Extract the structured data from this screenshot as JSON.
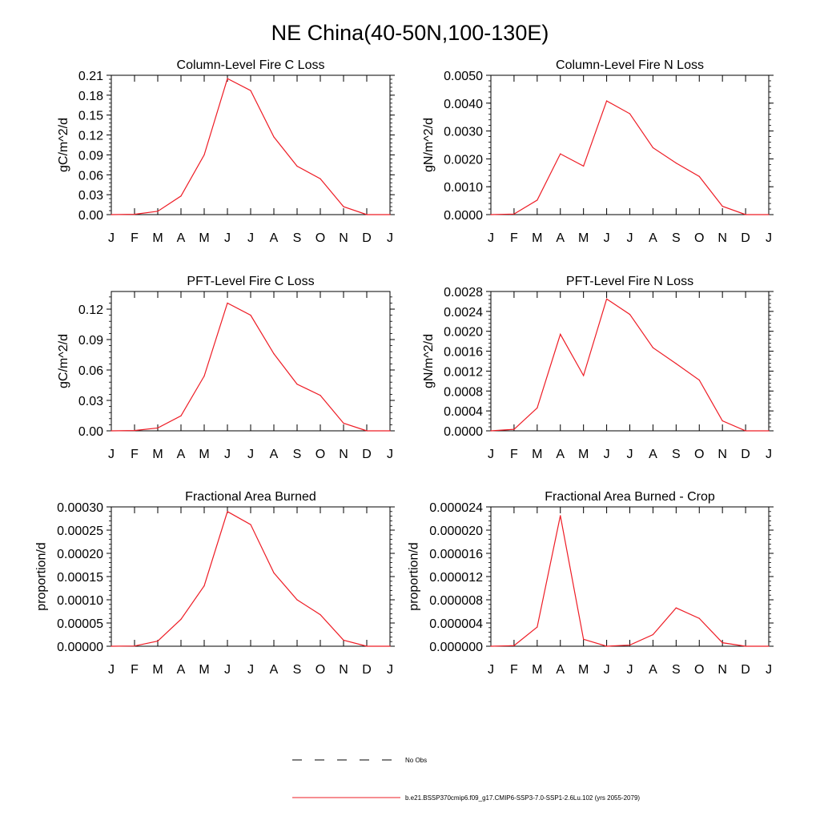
{
  "figure": {
    "title": "NE China(40-50N,100-130E)",
    "line_color": "#ee1c25",
    "legend": [
      {
        "label": "No Obs",
        "style": "dashed",
        "color": "#000000"
      },
      {
        "label": "b.e21.BSSP370cmip6.f09_g17.CMIP6-SSP3-7.0-SSP1-2.6Lu.102 (yrs 2055-2079)",
        "style": "solid",
        "color": "#ee1c25"
      }
    ]
  },
  "chart_data": [
    {
      "type": "line",
      "title": "Column-Level Fire C Loss",
      "ylabel": "gC/m^2/d",
      "categories": [
        "J",
        "F",
        "M",
        "A",
        "M",
        "J",
        "J",
        "A",
        "S",
        "O",
        "N",
        "D",
        "J"
      ],
      "ylim": [
        0,
        0.21
      ],
      "yticks": [
        "0.00",
        "0.03",
        "0.06",
        "0.09",
        "0.12",
        "0.15",
        "0.18",
        "0.21"
      ],
      "series": [
        {
          "values": [
            0,
            0.0005,
            0.005,
            0.028,
            0.09,
            0.205,
            0.187,
            0.117,
            0.073,
            0.054,
            0.012,
            0,
            0
          ]
        }
      ]
    },
    {
      "type": "line",
      "title": "Column-Level Fire N Loss",
      "ylabel": "gN/m^2/d",
      "categories": [
        "J",
        "F",
        "M",
        "A",
        "M",
        "J",
        "J",
        "A",
        "S",
        "O",
        "N",
        "D",
        "J"
      ],
      "ylim": [
        0,
        0.005
      ],
      "yticks": [
        "0.0000",
        "0.0010",
        "0.0020",
        "0.0030",
        "0.0040",
        "0.0050"
      ],
      "series": [
        {
          "values": [
            0,
            2e-05,
            0.00052,
            0.00218,
            0.00174,
            0.00408,
            0.00362,
            0.0024,
            0.00185,
            0.00137,
            0.0003,
            0,
            0
          ]
        }
      ]
    },
    {
      "type": "line",
      "title": "PFT-Level Fire C Loss",
      "ylabel": "gC/m^2/d",
      "categories": [
        "J",
        "F",
        "M",
        "A",
        "M",
        "J",
        "J",
        "A",
        "S",
        "O",
        "N",
        "D",
        "J"
      ],
      "ylim": [
        0,
        0.1374
      ],
      "yticks": [
        "0.00",
        "0.03",
        "0.06",
        "0.09",
        "0.12"
      ],
      "series": [
        {
          "values": [
            0,
            0.0003,
            0.0028,
            0.0148,
            0.054,
            0.126,
            0.114,
            0.076,
            0.046,
            0.035,
            0.0075,
            0,
            0
          ]
        }
      ]
    },
    {
      "type": "line",
      "title": "PFT-Level Fire N Loss",
      "ylabel": "gN/m^2/d",
      "categories": [
        "J",
        "F",
        "M",
        "A",
        "M",
        "J",
        "J",
        "A",
        "S",
        "O",
        "N",
        "D",
        "J"
      ],
      "ylim": [
        0,
        0.0028
      ],
      "yticks": [
        "0.0000",
        "0.0004",
        "0.0008",
        "0.0012",
        "0.0016",
        "0.0020",
        "0.0024",
        "0.0028"
      ],
      "series": [
        {
          "values": [
            0,
            3e-05,
            0.00046,
            0.00194,
            0.00111,
            0.00265,
            0.00234,
            0.00167,
            0.00135,
            0.00102,
            0.0002,
            0,
            0
          ]
        }
      ]
    },
    {
      "type": "line",
      "title": "Fractional Area Burned",
      "ylabel": "proportion/d",
      "categories": [
        "J",
        "F",
        "M",
        "A",
        "M",
        "J",
        "J",
        "A",
        "S",
        "O",
        "N",
        "D",
        "J"
      ],
      "ylim": [
        0,
        0.0003
      ],
      "yticks": [
        "0.00000",
        "0.00005",
        "0.00010",
        "0.00015",
        "0.00020",
        "0.00025",
        "0.00030"
      ],
      "series": [
        {
          "values": [
            0,
            5e-07,
            1.1e-05,
            5.8e-05,
            0.00013,
            0.00029,
            0.000262,
            0.000158,
            0.0001,
            6.8e-05,
            1.3e-05,
            0,
            0
          ]
        }
      ]
    },
    {
      "type": "line",
      "title": "Fractional Area Burned - Crop",
      "ylabel": "proportion/d",
      "categories": [
        "J",
        "F",
        "M",
        "A",
        "M",
        "J",
        "J",
        "A",
        "S",
        "O",
        "N",
        "D",
        "J"
      ],
      "ylim": [
        0,
        2.4e-05
      ],
      "yticks": [
        "0.000000",
        "0.000004",
        "0.000008",
        "0.000012",
        "0.000016",
        "0.000020",
        "0.000024"
      ],
      "series": [
        {
          "values": [
            0,
            1e-07,
            3.3e-06,
            2.25e-05,
            1.2e-06,
            0,
            2e-07,
            2e-06,
            6.6e-06,
            4.8e-06,
            6e-07,
            0,
            0
          ]
        }
      ]
    }
  ]
}
